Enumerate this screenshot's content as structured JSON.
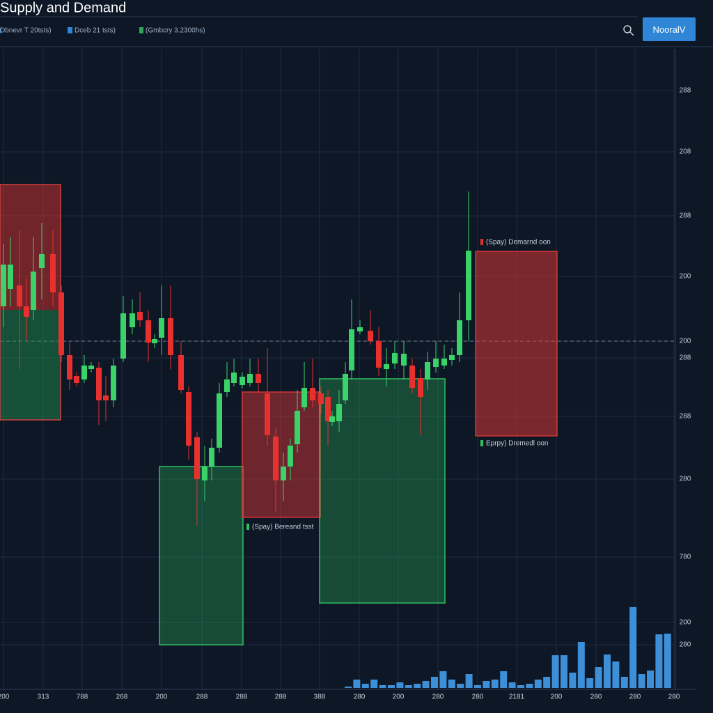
{
  "header": {
    "title": "Supply and Demand",
    "toolbar": [
      "Dbnevr T 20tsts)",
      "Dceb 21 tsts)",
      "(Gmbcry 3.2300hs)"
    ],
    "button": "NooralV"
  },
  "y_axis_labels": [
    "288",
    "208",
    "288",
    "200",
    "200",
    "288",
    "288",
    "280",
    "780",
    "200",
    "280"
  ],
  "x_axis_labels": [
    "200",
    "313",
    "788",
    "268",
    "200",
    "288",
    "288",
    "288",
    "388",
    "280",
    "200",
    "280",
    "280",
    "2181",
    "200",
    "280",
    "280",
    "280"
  ],
  "zones": [
    {
      "label": "(Spay) Demarnd oon"
    },
    {
      "label": "Eprpy) Dremedl oon"
    },
    {
      "label": "(Spay) Bereand tsst"
    }
  ]
}
